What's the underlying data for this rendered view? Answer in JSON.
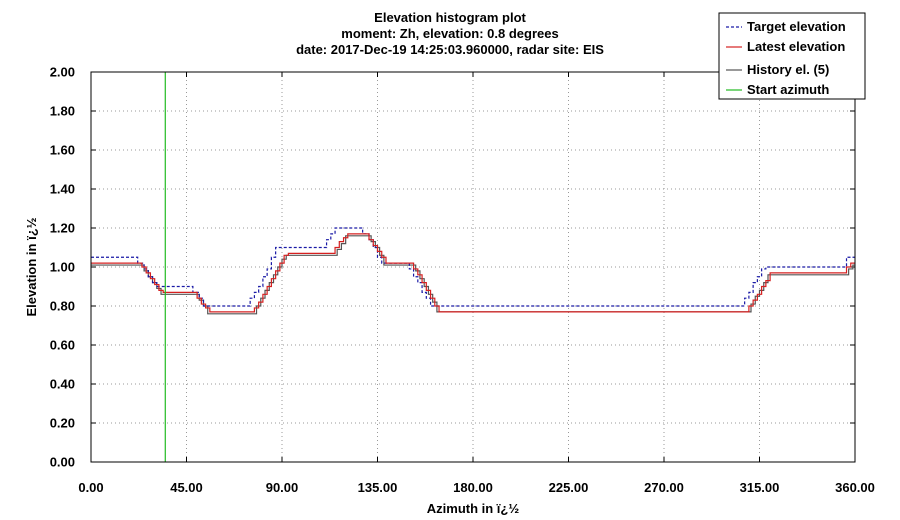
{
  "chart_data": {
    "type": "line",
    "title_lines": [
      "Elevation histogram plot",
      "moment: Zh, elevation: 0.8 degrees",
      "date: 2017-Dec-19 14:25:03.960000, radar site: EIS"
    ],
    "xlabel": "Azimuth in ï¿½",
    "ylabel": "Elevation in ï¿½",
    "xlim": [
      0,
      360
    ],
    "ylim": [
      0,
      2
    ],
    "x_ticks": [
      "0.00",
      "45.00",
      "90.00",
      "135.00",
      "180.00",
      "225.00",
      "270.00",
      "315.00",
      "360.00"
    ],
    "y_ticks": [
      "0.00",
      "0.20",
      "0.40",
      "0.60",
      "0.80",
      "1.00",
      "1.20",
      "1.40",
      "1.60",
      "1.80",
      "2.00"
    ],
    "grid": true,
    "legend_position": "top-right",
    "start_azimuth": 35,
    "series": [
      {
        "name": "Target elevation",
        "style": "dashed",
        "color": "#1a1aa6",
        "points": [
          [
            0,
            1.05
          ],
          [
            22,
            1.05
          ],
          [
            22,
            1.02
          ],
          [
            25,
            1.02
          ],
          [
            25,
            0.99
          ],
          [
            27,
            0.99
          ],
          [
            27,
            0.95
          ],
          [
            29,
            0.95
          ],
          [
            29,
            0.92
          ],
          [
            31,
            0.92
          ],
          [
            31,
            0.9
          ],
          [
            48,
            0.9
          ],
          [
            48,
            0.87
          ],
          [
            51,
            0.87
          ],
          [
            51,
            0.84
          ],
          [
            53,
            0.84
          ],
          [
            53,
            0.8
          ],
          [
            75,
            0.8
          ],
          [
            75,
            0.84
          ],
          [
            77,
            0.84
          ],
          [
            77,
            0.87
          ],
          [
            79,
            0.87
          ],
          [
            79,
            0.9
          ],
          [
            81,
            0.9
          ],
          [
            81,
            0.95
          ],
          [
            83,
            0.95
          ],
          [
            83,
            0.99
          ],
          [
            85,
            0.99
          ],
          [
            85,
            1.05
          ],
          [
            87,
            1.05
          ],
          [
            87,
            1.1
          ],
          [
            111,
            1.1
          ],
          [
            111,
            1.14
          ],
          [
            113,
            1.14
          ],
          [
            113,
            1.17
          ],
          [
            115,
            1.17
          ],
          [
            115,
            1.2
          ],
          [
            128,
            1.2
          ],
          [
            128,
            1.17
          ],
          [
            131,
            1.17
          ],
          [
            131,
            1.14
          ],
          [
            133,
            1.14
          ],
          [
            133,
            1.1
          ],
          [
            135,
            1.1
          ],
          [
            135,
            1.05
          ],
          [
            137,
            1.05
          ],
          [
            137,
            1.02
          ],
          [
            150,
            1.02
          ],
          [
            150,
            0.99
          ],
          [
            152,
            0.99
          ],
          [
            152,
            0.95
          ],
          [
            154,
            0.95
          ],
          [
            154,
            0.92
          ],
          [
            156,
            0.92
          ],
          [
            156,
            0.87
          ],
          [
            158,
            0.87
          ],
          [
            158,
            0.84
          ],
          [
            160,
            0.84
          ],
          [
            160,
            0.8
          ],
          [
            308,
            0.8
          ],
          [
            308,
            0.84
          ],
          [
            310,
            0.84
          ],
          [
            310,
            0.87
          ],
          [
            312,
            0.87
          ],
          [
            312,
            0.92
          ],
          [
            314,
            0.92
          ],
          [
            314,
            0.95
          ],
          [
            316,
            0.95
          ],
          [
            316,
            0.99
          ],
          [
            318,
            0.99
          ],
          [
            318,
            1.0
          ],
          [
            356,
            1.0
          ],
          [
            356,
            1.05
          ],
          [
            360,
            1.05
          ]
        ]
      },
      {
        "name": "Latest elevation",
        "style": "solid",
        "color": "#d62020",
        "points": [
          [
            0,
            1.02
          ],
          [
            24,
            1.02
          ],
          [
            24,
            1.0
          ],
          [
            26,
            1.0
          ],
          [
            26,
            0.97
          ],
          [
            28,
            0.97
          ],
          [
            28,
            0.94
          ],
          [
            30,
            0.94
          ],
          [
            30,
            0.91
          ],
          [
            32,
            0.91
          ],
          [
            32,
            0.88
          ],
          [
            34,
            0.88
          ],
          [
            34,
            0.87
          ],
          [
            50,
            0.87
          ],
          [
            50,
            0.84
          ],
          [
            52,
            0.84
          ],
          [
            52,
            0.81
          ],
          [
            54,
            0.81
          ],
          [
            54,
            0.79
          ],
          [
            56,
            0.79
          ],
          [
            56,
            0.77
          ],
          [
            77,
            0.77
          ],
          [
            77,
            0.79
          ],
          [
            79,
            0.79
          ],
          [
            79,
            0.82
          ],
          [
            81,
            0.82
          ],
          [
            81,
            0.86
          ],
          [
            83,
            0.86
          ],
          [
            83,
            0.9
          ],
          [
            85,
            0.9
          ],
          [
            85,
            0.94
          ],
          [
            87,
            0.94
          ],
          [
            87,
            0.98
          ],
          [
            89,
            0.98
          ],
          [
            89,
            1.02
          ],
          [
            91,
            1.02
          ],
          [
            91,
            1.06
          ],
          [
            93,
            1.06
          ],
          [
            93,
            1.07
          ],
          [
            115,
            1.07
          ],
          [
            115,
            1.1
          ],
          [
            117,
            1.1
          ],
          [
            117,
            1.13
          ],
          [
            119,
            1.13
          ],
          [
            119,
            1.15
          ],
          [
            121,
            1.15
          ],
          [
            121,
            1.17
          ],
          [
            131,
            1.17
          ],
          [
            131,
            1.14
          ],
          [
            133,
            1.14
          ],
          [
            133,
            1.11
          ],
          [
            135,
            1.11
          ],
          [
            135,
            1.08
          ],
          [
            137,
            1.08
          ],
          [
            137,
            1.05
          ],
          [
            139,
            1.05
          ],
          [
            139,
            1.02
          ],
          [
            152,
            1.02
          ],
          [
            152,
            0.99
          ],
          [
            154,
            0.99
          ],
          [
            154,
            0.96
          ],
          [
            156,
            0.96
          ],
          [
            156,
            0.92
          ],
          [
            158,
            0.92
          ],
          [
            158,
            0.88
          ],
          [
            160,
            0.88
          ],
          [
            160,
            0.84
          ],
          [
            162,
            0.84
          ],
          [
            162,
            0.8
          ],
          [
            164,
            0.8
          ],
          [
            164,
            0.77
          ],
          [
            310,
            0.77
          ],
          [
            310,
            0.8
          ],
          [
            312,
            0.8
          ],
          [
            312,
            0.83
          ],
          [
            314,
            0.83
          ],
          [
            314,
            0.86
          ],
          [
            316,
            0.86
          ],
          [
            316,
            0.9
          ],
          [
            318,
            0.9
          ],
          [
            318,
            0.93
          ],
          [
            320,
            0.93
          ],
          [
            320,
            0.97
          ],
          [
            356,
            0.97
          ],
          [
            356,
            1.0
          ],
          [
            358,
            1.0
          ],
          [
            358,
            1.02
          ],
          [
            360,
            1.02
          ]
        ]
      },
      {
        "name": "History el. (5)",
        "style": "solid",
        "color": "#555555",
        "points": [
          [
            0,
            1.01
          ],
          [
            25,
            1.01
          ],
          [
            25,
            0.98
          ],
          [
            27,
            0.98
          ],
          [
            27,
            0.95
          ],
          [
            29,
            0.95
          ],
          [
            29,
            0.92
          ],
          [
            31,
            0.92
          ],
          [
            31,
            0.89
          ],
          [
            33,
            0.89
          ],
          [
            33,
            0.86
          ],
          [
            51,
            0.86
          ],
          [
            51,
            0.83
          ],
          [
            53,
            0.83
          ],
          [
            53,
            0.8
          ],
          [
            55,
            0.8
          ],
          [
            55,
            0.76
          ],
          [
            78,
            0.76
          ],
          [
            78,
            0.8
          ],
          [
            80,
            0.8
          ],
          [
            80,
            0.84
          ],
          [
            82,
            0.84
          ],
          [
            82,
            0.88
          ],
          [
            84,
            0.88
          ],
          [
            84,
            0.92
          ],
          [
            86,
            0.92
          ],
          [
            86,
            0.96
          ],
          [
            88,
            0.96
          ],
          [
            88,
            1.0
          ],
          [
            90,
            1.0
          ],
          [
            90,
            1.04
          ],
          [
            92,
            1.04
          ],
          [
            92,
            1.06
          ],
          [
            116,
            1.06
          ],
          [
            116,
            1.09
          ],
          [
            118,
            1.09
          ],
          [
            118,
            1.12
          ],
          [
            120,
            1.12
          ],
          [
            120,
            1.16
          ],
          [
            132,
            1.16
          ],
          [
            132,
            1.13
          ],
          [
            134,
            1.13
          ],
          [
            134,
            1.1
          ],
          [
            136,
            1.1
          ],
          [
            136,
            1.06
          ],
          [
            138,
            1.06
          ],
          [
            138,
            1.01
          ],
          [
            153,
            1.01
          ],
          [
            153,
            0.98
          ],
          [
            155,
            0.98
          ],
          [
            155,
            0.94
          ],
          [
            157,
            0.94
          ],
          [
            157,
            0.9
          ],
          [
            159,
            0.9
          ],
          [
            159,
            0.86
          ],
          [
            161,
            0.86
          ],
          [
            161,
            0.82
          ],
          [
            163,
            0.82
          ],
          [
            163,
            0.77
          ],
          [
            311,
            0.77
          ],
          [
            311,
            0.81
          ],
          [
            313,
            0.81
          ],
          [
            313,
            0.85
          ],
          [
            315,
            0.85
          ],
          [
            315,
            0.88
          ],
          [
            317,
            0.88
          ],
          [
            317,
            0.92
          ],
          [
            319,
            0.92
          ],
          [
            319,
            0.96
          ],
          [
            357,
            0.96
          ],
          [
            357,
            0.99
          ],
          [
            359,
            0.99
          ],
          [
            359,
            1.01
          ],
          [
            360,
            1.01
          ]
        ]
      },
      {
        "name": "Start azimuth",
        "style": "solid",
        "color": "#22bb22",
        "points": [
          [
            35,
            0
          ],
          [
            35,
            2
          ]
        ]
      }
    ]
  }
}
